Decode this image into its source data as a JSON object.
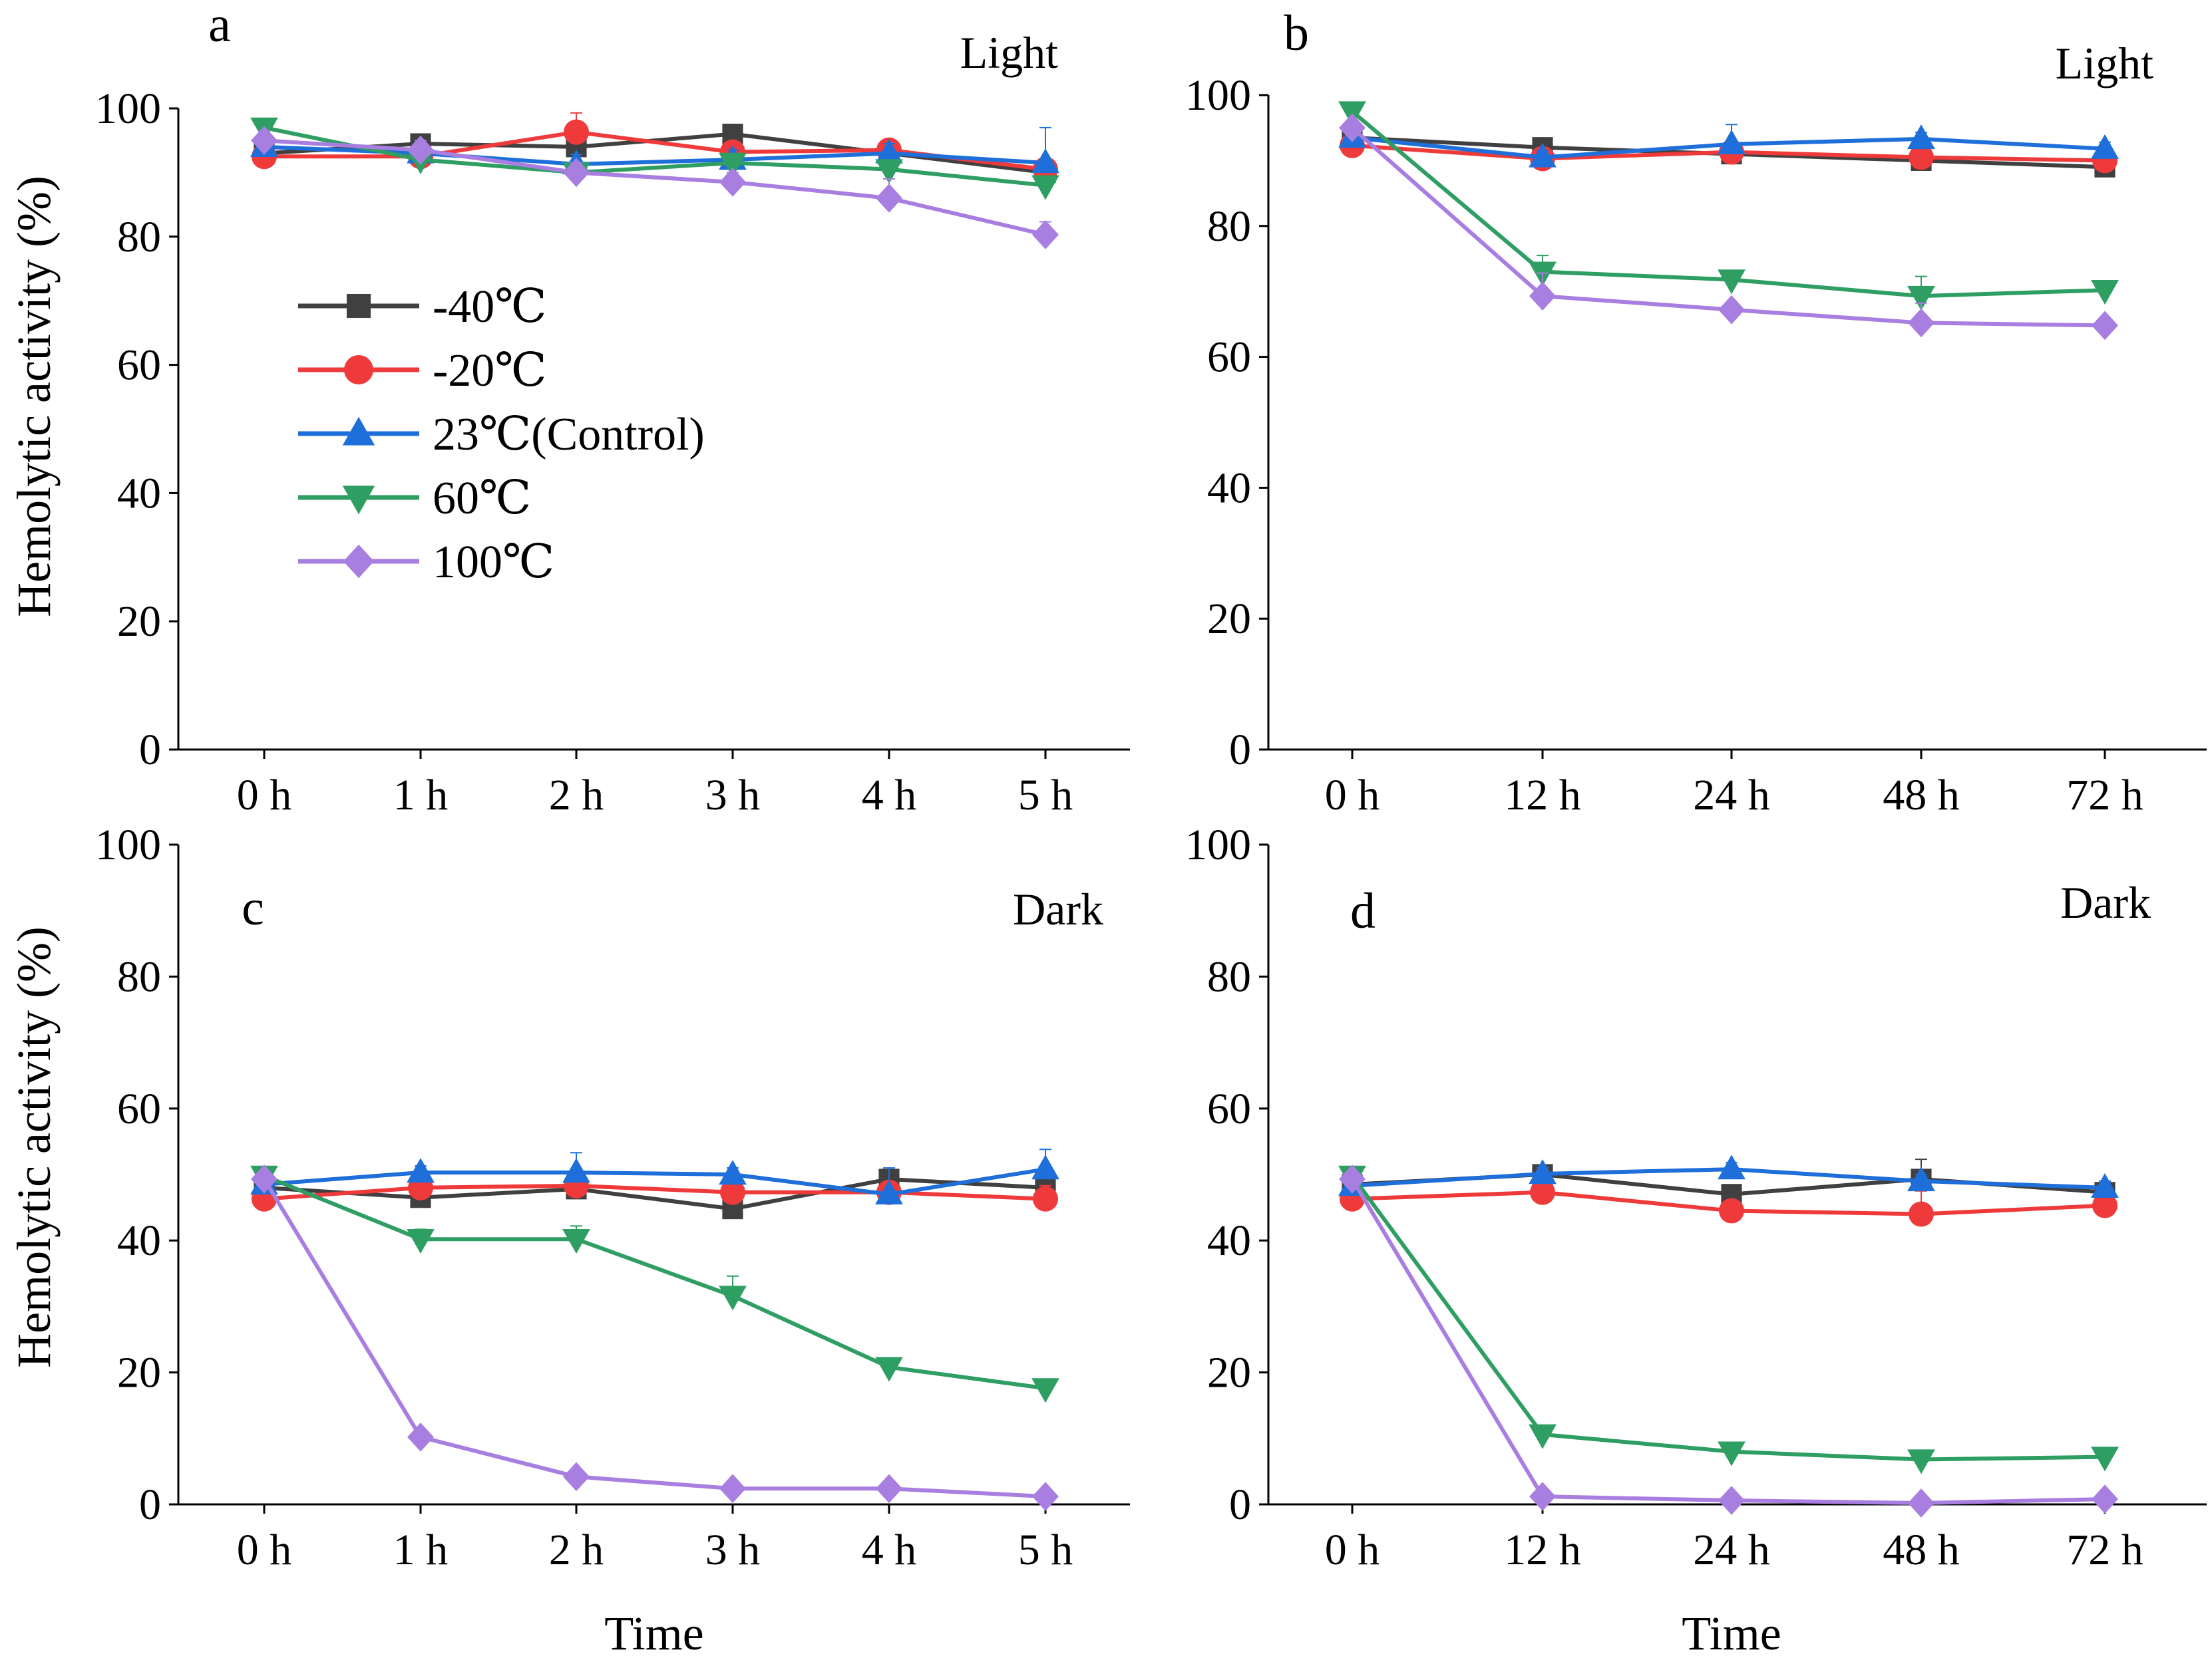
{
  "figure": {
    "legend": [
      {
        "name": "-40℃",
        "color": "#404040",
        "marker": "square"
      },
      {
        "name": "-20℃",
        "color": "#ee3a3a",
        "marker": "circle"
      },
      {
        "name": "23℃(Control)",
        "color": "#1e6fd9",
        "marker": "triangle-up"
      },
      {
        "name": "60℃",
        "color": "#2e9e62",
        "marker": "triangle-down"
      },
      {
        "name": "100℃",
        "color": "#a87ee0",
        "marker": "diamond"
      }
    ]
  },
  "chart_data": [
    {
      "id": "a",
      "type": "line",
      "letter": "a",
      "condition": "Light",
      "categories": [
        "0 h",
        "1 h",
        "2 h",
        "3 h",
        "4 h",
        "5 h"
      ],
      "xlabel": "",
      "ylabel": "Hemolytic activity (%)",
      "ylim": [
        0,
        100
      ],
      "yticks": [
        0,
        20,
        40,
        60,
        80,
        100
      ],
      "series": [
        {
          "name": "-40℃",
          "values": [
            93,
            94.5,
            94,
            96,
            93,
            90
          ],
          "errors": [
            1.5,
            1.5,
            1.5,
            1.5,
            1.5,
            1.5
          ]
        },
        {
          "name": "-20℃",
          "values": [
            92.5,
            92.5,
            96.3,
            93.2,
            93.5,
            90.5
          ],
          "errors": [
            1,
            1,
            3,
            1.5,
            1.5,
            1.5
          ]
        },
        {
          "name": "23℃(Control)",
          "values": [
            94,
            93,
            91.3,
            92,
            93,
            91.5
          ],
          "errors": [
            2,
            1.5,
            1.5,
            1.5,
            1.5,
            5.5
          ]
        },
        {
          "name": "60℃",
          "values": [
            97,
            92,
            90,
            91.5,
            90.5,
            88
          ],
          "errors": [
            1,
            1,
            1,
            1,
            1,
            1
          ]
        },
        {
          "name": "100℃",
          "values": [
            95,
            93.5,
            90,
            88.5,
            86,
            80.3
          ],
          "errors": [
            1.5,
            1.5,
            1.5,
            1.5,
            3,
            2
          ]
        }
      ]
    },
    {
      "id": "b",
      "type": "line",
      "letter": "b",
      "condition": "Light",
      "categories": [
        "0 h",
        "12 h",
        "24 h",
        "48 h",
        "72 h"
      ],
      "xlabel": "",
      "ylabel": "",
      "ylim": [
        0,
        100
      ],
      "yticks": [
        0,
        20,
        40,
        60,
        80,
        100
      ],
      "series": [
        {
          "name": "-40℃",
          "values": [
            93.5,
            92,
            91,
            90,
            89
          ],
          "errors": [
            1,
            1,
            1,
            1,
            1
          ]
        },
        {
          "name": "-20℃",
          "values": [
            92.3,
            90.3,
            91.3,
            90.5,
            90
          ],
          "errors": [
            1,
            1.5,
            1,
            1,
            1
          ]
        },
        {
          "name": "23℃(Control)",
          "values": [
            93.5,
            90.5,
            92.5,
            93.3,
            91.8
          ],
          "errors": [
            1,
            1,
            3,
            1,
            1
          ]
        },
        {
          "name": "60℃",
          "values": [
            97.5,
            73,
            71.8,
            69.3,
            70.2
          ],
          "errors": [
            1,
            2.5,
            1,
            3,
            1
          ]
        },
        {
          "name": "100℃",
          "values": [
            95,
            69.3,
            67.2,
            65.2,
            64.8
          ],
          "errors": [
            1,
            3.5,
            1,
            3,
            1
          ]
        }
      ]
    },
    {
      "id": "c",
      "type": "line",
      "letter": "c",
      "condition": "Dark",
      "categories": [
        "0 h",
        "1 h",
        "2 h",
        "3 h",
        "4 h",
        "5 h"
      ],
      "xlabel": "Time",
      "ylabel": "Hemolytic activity (%)",
      "ylim": [
        0,
        100
      ],
      "yticks": [
        0,
        20,
        40,
        60,
        80,
        100
      ],
      "series": [
        {
          "name": "-40℃",
          "values": [
            48,
            46.5,
            47.8,
            44.8,
            49.3,
            48
          ],
          "errors": [
            1,
            1.5,
            1.5,
            1,
            1,
            1
          ]
        },
        {
          "name": "-20℃",
          "values": [
            46.3,
            48,
            48.3,
            47.3,
            47.3,
            46.3
          ],
          "errors": [
            1,
            1.5,
            1,
            1,
            1,
            2
          ]
        },
        {
          "name": "23℃(Control)",
          "values": [
            48.5,
            50.3,
            50.3,
            50,
            47,
            50.8
          ],
          "errors": [
            1,
            1,
            3,
            1,
            4,
            3
          ]
        },
        {
          "name": "60℃",
          "values": [
            49.8,
            40.2,
            40.2,
            31.6,
            20.8,
            17.6
          ],
          "errors": [
            1,
            1.5,
            2,
            3,
            1,
            1
          ]
        },
        {
          "name": "100℃",
          "values": [
            49.3,
            10.2,
            4.2,
            2.4,
            2.4,
            1.2
          ],
          "errors": [
            1,
            1,
            1,
            1,
            1,
            1
          ]
        }
      ]
    },
    {
      "id": "d",
      "type": "line",
      "letter": "d",
      "condition": "Dark",
      "categories": [
        "0 h",
        "12 h",
        "24 h",
        "48 h",
        "72 h"
      ],
      "xlabel": "Time",
      "ylabel": "",
      "ylim": [
        0,
        100
      ],
      "yticks": [
        0,
        20,
        40,
        60,
        80,
        100
      ],
      "series": [
        {
          "name": "-40℃",
          "values": [
            48.5,
            50,
            47,
            49.3,
            47.3
          ],
          "errors": [
            1,
            1,
            1,
            3,
            1
          ]
        },
        {
          "name": "-20℃",
          "values": [
            46.3,
            47.3,
            44.5,
            44,
            45.3
          ],
          "errors": [
            1,
            3.5,
            1,
            3.5,
            1
          ]
        },
        {
          "name": "23℃(Control)",
          "values": [
            48.3,
            50.1,
            50.8,
            49,
            48
          ],
          "errors": [
            1,
            1,
            1,
            1,
            1
          ]
        },
        {
          "name": "60℃",
          "values": [
            49.8,
            10.6,
            8,
            6.8,
            7.2
          ],
          "errors": [
            1,
            1,
            1,
            1,
            1
          ]
        },
        {
          "name": "100℃",
          "values": [
            49.3,
            1.2,
            0.6,
            0.2,
            0.8
          ],
          "errors": [
            1,
            1,
            1,
            1,
            1
          ]
        }
      ]
    }
  ]
}
